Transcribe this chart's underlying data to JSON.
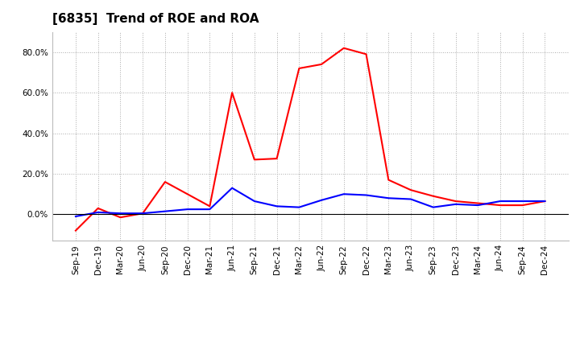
{
  "title": "[6835]  Trend of ROE and ROA",
  "x_labels": [
    "Sep-19",
    "Dec-19",
    "Mar-20",
    "Jun-20",
    "Sep-20",
    "Dec-20",
    "Mar-21",
    "Jun-21",
    "Sep-21",
    "Dec-21",
    "Mar-22",
    "Jun-22",
    "Sep-22",
    "Dec-22",
    "Mar-23",
    "Jun-23",
    "Sep-23",
    "Dec-23",
    "Mar-24",
    "Jun-24",
    "Sep-24",
    "Dec-24"
  ],
  "roe": [
    -8.0,
    3.0,
    -1.5,
    0.5,
    16.0,
    10.0,
    4.0,
    60.0,
    27.0,
    27.5,
    72.0,
    74.0,
    82.0,
    79.0,
    17.0,
    12.0,
    9.0,
    6.5,
    5.5,
    4.5,
    4.5,
    6.5
  ],
  "roa": [
    -1.0,
    1.0,
    0.5,
    0.5,
    1.5,
    2.5,
    2.5,
    13.0,
    6.5,
    4.0,
    3.5,
    7.0,
    10.0,
    9.5,
    8.0,
    7.5,
    3.5,
    5.0,
    4.5,
    6.5,
    6.5,
    6.5
  ],
  "roe_color": "#FF0000",
  "roa_color": "#0000FF",
  "background_color": "#FFFFFF",
  "grid_color": "#aaaaaa",
  "yticks": [
    0.0,
    20.0,
    40.0,
    60.0,
    80.0
  ],
  "ylim": [
    -13.0,
    90.0
  ],
  "title_fontsize": 11,
  "tick_fontsize": 7.5,
  "legend_fontsize": 9
}
